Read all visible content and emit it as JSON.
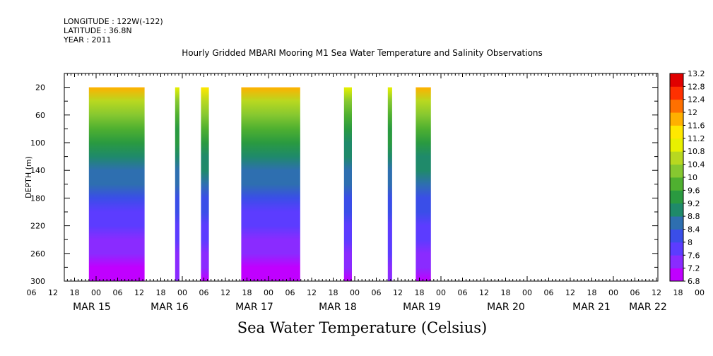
{
  "header": {
    "longitude": "LONGITUDE : 122W(-122)",
    "latitude": "LATITUDE : 36.8N",
    "year": "YEAR : 2011"
  },
  "chart_data": {
    "type": "heatmap",
    "title": "Hourly Gridded MBARI Mooring M1 Sea Water Temperature and Salinity Observations",
    "xlabel": "Sea Water Temperature (Celsius)",
    "ylabel": "DEPTH (m)",
    "y_axis_reversed": true,
    "ylim": [
      300,
      0
    ],
    "ytick_values": [
      20,
      60,
      100,
      140,
      180,
      220,
      260,
      300
    ],
    "ytick_labels": [
      "20",
      "60",
      "100",
      "140",
      "180",
      "220",
      "260",
      "300"
    ],
    "xlim_hours": [
      0,
      192
    ],
    "x_hour_ticks": [
      "06",
      "12",
      "18",
      "00",
      "06",
      "12",
      "18",
      "00",
      "06",
      "12",
      "18",
      "00",
      "06",
      "12",
      "18",
      "00",
      "06",
      "12",
      "18",
      "00",
      "06",
      "12",
      "18",
      "00",
      "06",
      "12",
      "18",
      "00",
      "06",
      "12",
      "18",
      "00"
    ],
    "x_day_labels": [
      {
        "label": "MAR 15",
        "day_start_hour": 0
      },
      {
        "label": "MAR 16",
        "day_start_hour": 24
      },
      {
        "label": "MAR 17",
        "day_start_hour": 48
      },
      {
        "label": "MAR 18",
        "day_start_hour": 72
      },
      {
        "label": "MAR 19",
        "day_start_hour": 96
      },
      {
        "label": "MAR 20",
        "day_start_hour": 120
      },
      {
        "label": "MAR 21",
        "day_start_hour": 144
      },
      {
        "label": "MAR 22",
        "day_start_hour": 168
      }
    ],
    "data_depth_range": [
      20,
      300
    ],
    "data_blocks": [
      {
        "start_hour": 22.0,
        "end_hour": 37.5,
        "surface_temp": 11.6,
        "deep_temp": 6.9
      },
      {
        "start_hour": 46.0,
        "end_hour": 47.2,
        "surface_temp": 11.0,
        "deep_temp": 7.2
      },
      {
        "start_hour": 53.2,
        "end_hour": 55.4,
        "surface_temp": 11.4,
        "deep_temp": 7.1
      },
      {
        "start_hour": 64.4,
        "end_hour": 80.8,
        "surface_temp": 11.8,
        "deep_temp": 6.8
      },
      {
        "start_hour": 93.0,
        "end_hour": 95.2,
        "surface_temp": 11.0,
        "deep_temp": 7.1
      },
      {
        "start_hour": 105.2,
        "end_hour": 106.4,
        "surface_temp": 11.0,
        "deep_temp": 7.3
      },
      {
        "start_hour": 113.0,
        "end_hour": 117.2,
        "surface_temp": 11.6,
        "deep_temp": 7.1
      }
    ],
    "colorbar": {
      "labels": [
        "13.2",
        "12.8",
        "12.4",
        "12",
        "11.6",
        "11.2",
        "10.8",
        "10.4",
        "10",
        "9.6",
        "9.2",
        "8.8",
        "8.4",
        "8",
        "7.6",
        "7.2",
        "6.8"
      ],
      "min": 6.8,
      "max": 13.2,
      "step": 0.2
    }
  }
}
